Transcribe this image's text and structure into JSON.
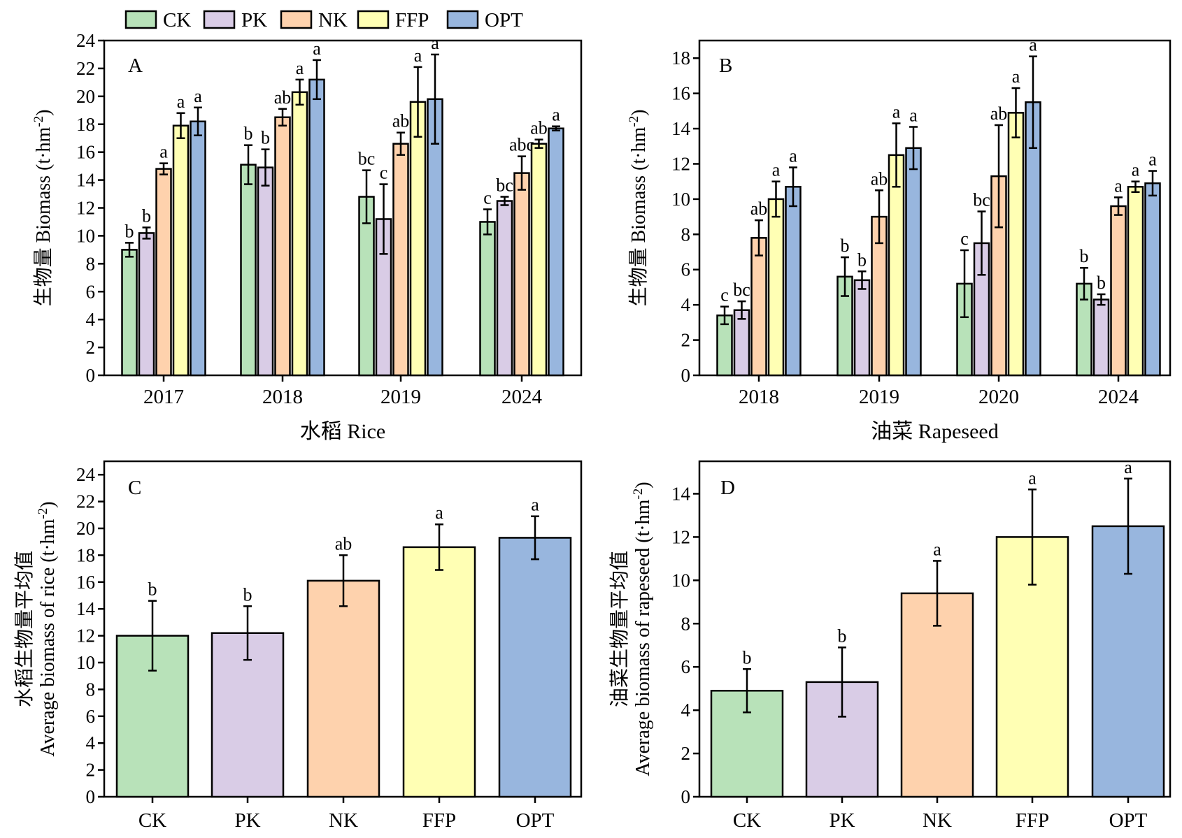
{
  "legend": {
    "position": "top-left",
    "items": [
      {
        "key": "CK",
        "label": "CK",
        "color": "#b8e2b9"
      },
      {
        "key": "PK",
        "label": "PK",
        "color": "#d9cce6"
      },
      {
        "key": "NK",
        "label": "NK",
        "color": "#fed2ad"
      },
      {
        "key": "FFP",
        "label": "FFP",
        "color": "#ffffb4"
      },
      {
        "key": "OPT",
        "label": "OPT",
        "color": "#98b6de"
      }
    ]
  },
  "chart_data": [
    {
      "panel": "A",
      "type": "bar",
      "xlabel": "水稻 Rice",
      "ylabel": "生物量 Biomass (t·hm",
      "ylabel_sup": "-2",
      "ylabel_end": ")",
      "ylim": [
        0,
        24
      ],
      "yticks": [
        0,
        2,
        4,
        6,
        8,
        10,
        12,
        14,
        16,
        18,
        20,
        22,
        24
      ],
      "grid": false,
      "categories": [
        "2017",
        "2018",
        "2019",
        "2024"
      ],
      "series": [
        {
          "name": "CK",
          "values": [
            9.0,
            15.1,
            12.8,
            11.0
          ],
          "errors": [
            0.5,
            1.4,
            1.9,
            0.9
          ],
          "labels": [
            "b",
            "b",
            "bc",
            "c"
          ]
        },
        {
          "name": "PK",
          "values": [
            10.2,
            14.9,
            11.2,
            12.5
          ],
          "errors": [
            0.4,
            1.3,
            2.5,
            0.3
          ],
          "labels": [
            "b",
            "b",
            "c",
            "bc"
          ]
        },
        {
          "name": "NK",
          "values": [
            14.8,
            18.5,
            16.6,
            14.5
          ],
          "errors": [
            0.4,
            0.6,
            0.8,
            1.2
          ],
          "labels": [
            "a",
            "ab",
            "ab",
            "abc"
          ]
        },
        {
          "name": "FFP",
          "values": [
            17.9,
            20.3,
            19.6,
            16.6
          ],
          "errors": [
            0.9,
            0.9,
            2.5,
            0.3
          ],
          "labels": [
            "a",
            "a",
            "a",
            "ab"
          ]
        },
        {
          "name": "OPT",
          "values": [
            18.2,
            21.2,
            19.8,
            17.7
          ],
          "errors": [
            1.0,
            1.4,
            3.2,
            0.15
          ],
          "labels": [
            "a",
            "a",
            "a",
            "a"
          ]
        }
      ]
    },
    {
      "panel": "B",
      "type": "bar",
      "xlabel": "油菜 Rapeseed",
      "ylabel": "生物量 Biomass (t·hm",
      "ylabel_sup": "-2",
      "ylabel_end": ")",
      "ylim": [
        0,
        19
      ],
      "yticks": [
        0,
        2,
        4,
        6,
        8,
        10,
        12,
        14,
        16,
        18
      ],
      "grid": false,
      "categories": [
        "2018",
        "2019",
        "2020",
        "2024"
      ],
      "series": [
        {
          "name": "CK",
          "values": [
            3.4,
            5.6,
            5.2,
            5.2
          ],
          "errors": [
            0.5,
            1.1,
            1.9,
            0.9
          ],
          "labels": [
            "c",
            "b",
            "c",
            "b"
          ]
        },
        {
          "name": "PK",
          "values": [
            3.7,
            5.4,
            7.5,
            4.3
          ],
          "errors": [
            0.5,
            0.5,
            1.8,
            0.3
          ],
          "labels": [
            "bc",
            "b",
            "bc",
            "b"
          ]
        },
        {
          "name": "NK",
          "values": [
            7.8,
            9.0,
            11.3,
            9.6
          ],
          "errors": [
            1.0,
            1.5,
            2.9,
            0.5
          ],
          "labels": [
            "ab",
            "ab",
            "ab",
            "a"
          ]
        },
        {
          "name": "FFP",
          "values": [
            10.0,
            12.5,
            14.9,
            10.7
          ],
          "errors": [
            1.0,
            1.8,
            1.4,
            0.3
          ],
          "labels": [
            "a",
            "a",
            "a",
            "a"
          ]
        },
        {
          "name": "OPT",
          "values": [
            10.7,
            12.9,
            15.5,
            10.9
          ],
          "errors": [
            1.1,
            1.2,
            2.6,
            0.7
          ],
          "labels": [
            "a",
            "a",
            "a",
            "a"
          ]
        }
      ]
    },
    {
      "panel": "C",
      "type": "bar",
      "xlabel": "",
      "ylabel_line1": "水稻生物量平均值",
      "ylabel": "Average biomass of rice (t·hm",
      "ylabel_sup": "-2",
      "ylabel_end": ")",
      "ylim": [
        0,
        25
      ],
      "yticks": [
        0,
        2,
        4,
        6,
        8,
        10,
        12,
        14,
        16,
        18,
        20,
        22,
        24
      ],
      "grid": false,
      "categories": [
        "CK",
        "PK",
        "NK",
        "FFP",
        "OPT"
      ],
      "values": [
        12.0,
        12.2,
        16.1,
        18.6,
        19.3
      ],
      "errors": [
        2.6,
        2.0,
        1.9,
        1.7,
        1.6
      ],
      "labels": [
        "b",
        "b",
        "ab",
        "a",
        "a"
      ]
    },
    {
      "panel": "D",
      "type": "bar",
      "xlabel": "",
      "ylabel_line1": "油菜生物量平均值",
      "ylabel": "Average biomass of rapeseed (t·hm",
      "ylabel_sup": "-2",
      "ylabel_end": ")",
      "ylim": [
        0,
        15.5
      ],
      "yticks": [
        0,
        2,
        4,
        6,
        8,
        10,
        12,
        14
      ],
      "grid": false,
      "categories": [
        "CK",
        "PK",
        "NK",
        "FFP",
        "OPT"
      ],
      "values": [
        4.9,
        5.3,
        9.4,
        12.0,
        12.5
      ],
      "errors": [
        1.0,
        1.6,
        1.5,
        2.2,
        2.2
      ],
      "labels": [
        "b",
        "b",
        "a",
        "a",
        "a"
      ]
    }
  ]
}
